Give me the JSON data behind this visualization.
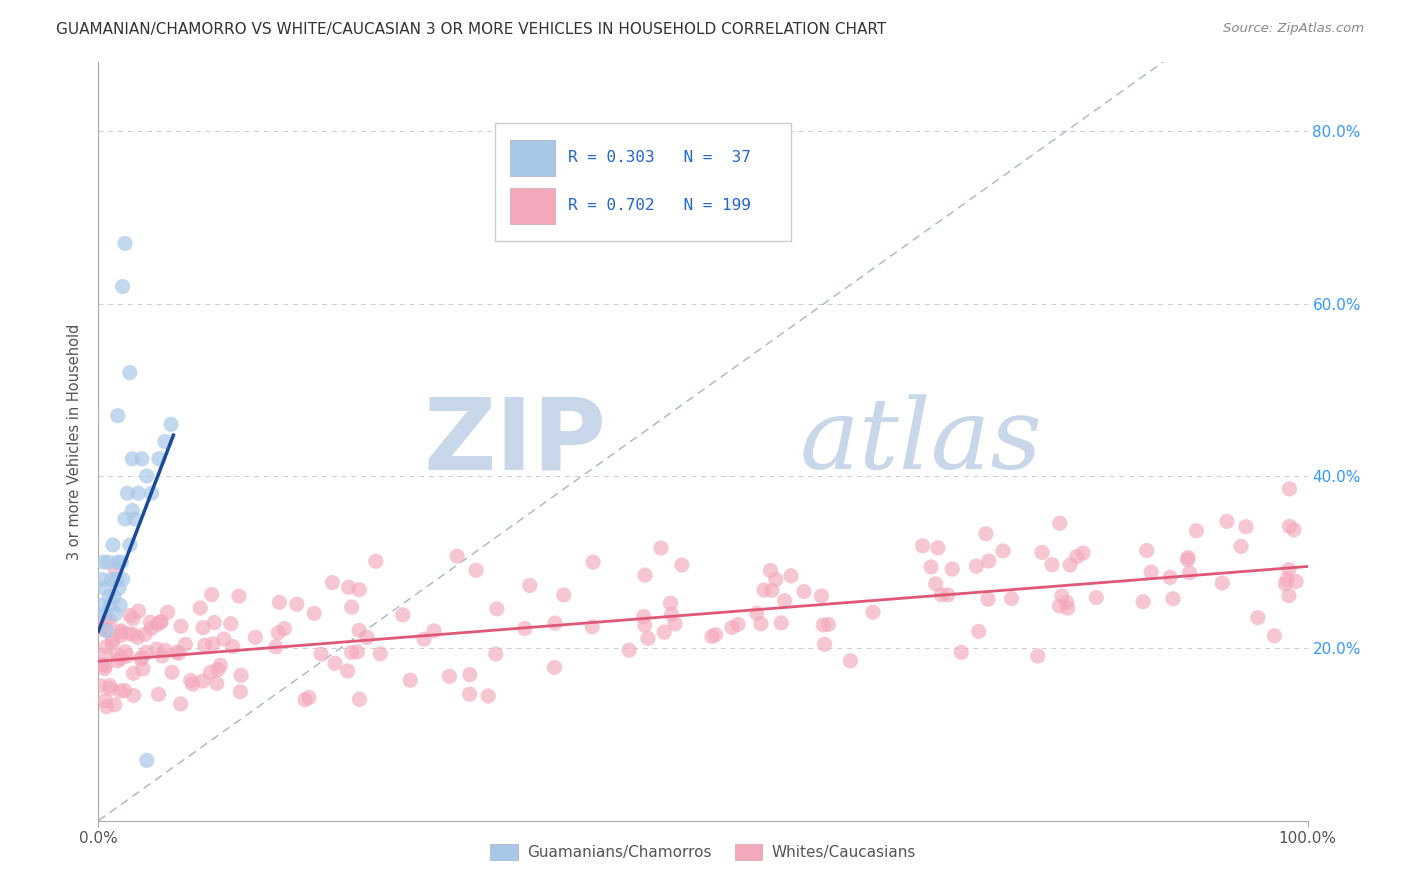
{
  "title": "GUAMANIAN/CHAMORRO VS WHITE/CAUCASIAN 3 OR MORE VEHICLES IN HOUSEHOLD CORRELATION CHART",
  "source": "Source: ZipAtlas.com",
  "ylabel": "3 or more Vehicles in Household",
  "legend_label1": "Guamanians/Chamorros",
  "legend_label2": "Whites/Caucasians",
  "R1": 0.303,
  "N1": 37,
  "R2": 0.702,
  "N2": 199,
  "color1": "#a8c8e8",
  "color2": "#f4a8bc",
  "line1_color": "#1a4a9a",
  "line2_color": "#e05878",
  "diag_color": "#a0b8d0",
  "title_fontsize": 11,
  "watermark_zip": "ZIP",
  "watermark_atlas": "atlas",
  "watermark_color": "#c8d8ea",
  "ylim_max": 0.88,
  "xlim_max": 1.0
}
